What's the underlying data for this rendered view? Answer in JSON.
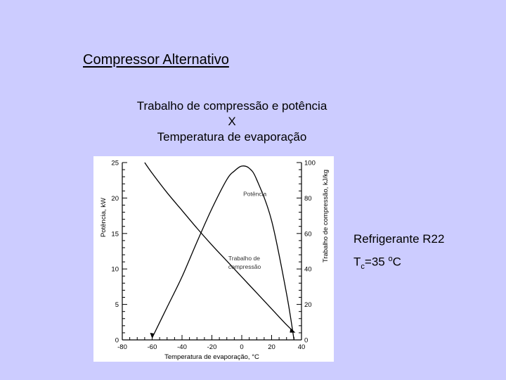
{
  "slide": {
    "title": "Compressor Alternativo",
    "subtitle_lines": [
      "Trabalho de compressão e potência",
      "X",
      "Temperatura de evaporação"
    ],
    "note": {
      "refrigerant": "Refrigerante R22",
      "tc_symbol": "T",
      "tc_sub": "c",
      "tc_eq": "=35 ",
      "tc_sup": "o",
      "tc_unit": "C"
    }
  },
  "chart_data": {
    "type": "line",
    "title": "",
    "xlabel": "Temperatura de evaporação, °C",
    "ylabel_left": "Potência, kW",
    "ylabel_right": "Trabalho de compressão, kJ/kg",
    "xlim": [
      -80,
      40
    ],
    "ylim_left": [
      0,
      25
    ],
    "ylim_right": [
      0,
      100
    ],
    "x_ticks": [
      "-80",
      "-60",
      "-40",
      "-20",
      "0",
      "20",
      "40"
    ],
    "y_left_ticks": [
      "0",
      "5",
      "10",
      "15",
      "20",
      "25"
    ],
    "y_right_ticks": [
      "0",
      "20",
      "40",
      "60",
      "80",
      "100"
    ],
    "grid": false,
    "series": [
      {
        "name": "Potência",
        "axis": "left",
        "x": [
          -60,
          -50,
          -40,
          -30,
          -20,
          -10,
          -5,
          0,
          5,
          10,
          20,
          30,
          35
        ],
        "y": [
          0.3,
          4.6,
          8.9,
          13.8,
          18.5,
          22.6,
          23.8,
          24.5,
          24.2,
          22.6,
          16.8,
          6.5,
          0
        ]
      },
      {
        "name": "Trabalho de compressão",
        "axis": "right",
        "x": [
          -65,
          -60,
          -50,
          -40,
          -30,
          -20,
          -10,
          0,
          10,
          20,
          30,
          35
        ],
        "y": [
          100,
          94,
          83,
          73,
          63,
          53.5,
          44.5,
          35.5,
          26.5,
          17.5,
          8.5,
          4.5
        ]
      }
    ],
    "annotations": [
      {
        "text": "Potência",
        "x": 1,
        "y": 20.3,
        "axis": "left"
      },
      {
        "text": "Trabalho de",
        "x": -9,
        "y": 11.2,
        "axis": "left"
      },
      {
        "text": "compressão",
        "x": -9,
        "y": 10.0,
        "axis": "left"
      }
    ]
  }
}
